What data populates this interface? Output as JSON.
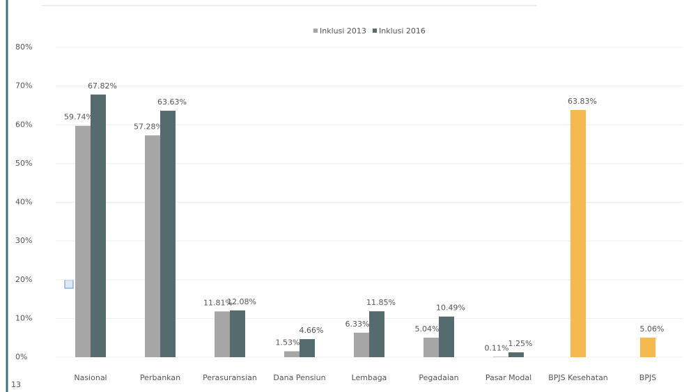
{
  "chart_data": {
    "type": "bar",
    "categories": [
      "Nasional",
      "Perbankan",
      "Perasuransian",
      "Dana Pensiun",
      "Lembaga",
      "Pegadaian",
      "Pasar Modal",
      "BPJS Kesehatan",
      "BPJS"
    ],
    "series": [
      {
        "name": "Inklusi 2013",
        "color": "#a6a6a6",
        "values": [
          59.74,
          57.28,
          11.81,
          1.53,
          6.33,
          5.04,
          0.11,
          null,
          null
        ],
        "value_labels": [
          "59.74%",
          "57.28%",
          "11.81%",
          "1.53%",
          "6.33%",
          "5.04%",
          "0.11%",
          null,
          null
        ]
      },
      {
        "name": "Inklusi 2016",
        "color": "#566b6e",
        "colors": [
          "#566b6e",
          "#566b6e",
          "#566b6e",
          "#566b6e",
          "#566b6e",
          "#566b6e",
          "#566b6e",
          "#f5b94f",
          "#f5b94f"
        ],
        "values": [
          67.82,
          63.63,
          12.08,
          4.66,
          11.85,
          10.49,
          1.25,
          63.83,
          5.06
        ],
        "value_labels": [
          "67.82%",
          "63.63%",
          "12.08%",
          "4.66%",
          "11.85%",
          "10.49%",
          "1.25%",
          "63.83%",
          "5.06%"
        ]
      }
    ],
    "ylim": [
      0,
      80
    ],
    "yticks": [
      {
        "value": 0,
        "label": "0%"
      },
      {
        "value": 10,
        "label": "10%"
      },
      {
        "value": 20,
        "label": "20%"
      },
      {
        "value": 30,
        "label": "30%"
      },
      {
        "value": 40,
        "label": "40%"
      },
      {
        "value": 50,
        "label": "50%"
      },
      {
        "value": 60,
        "label": "60%"
      },
      {
        "value": 70,
        "label": "70%"
      },
      {
        "value": 80,
        "label": "80%"
      }
    ],
    "grid": true,
    "legend": "top"
  },
  "page_number": "13"
}
